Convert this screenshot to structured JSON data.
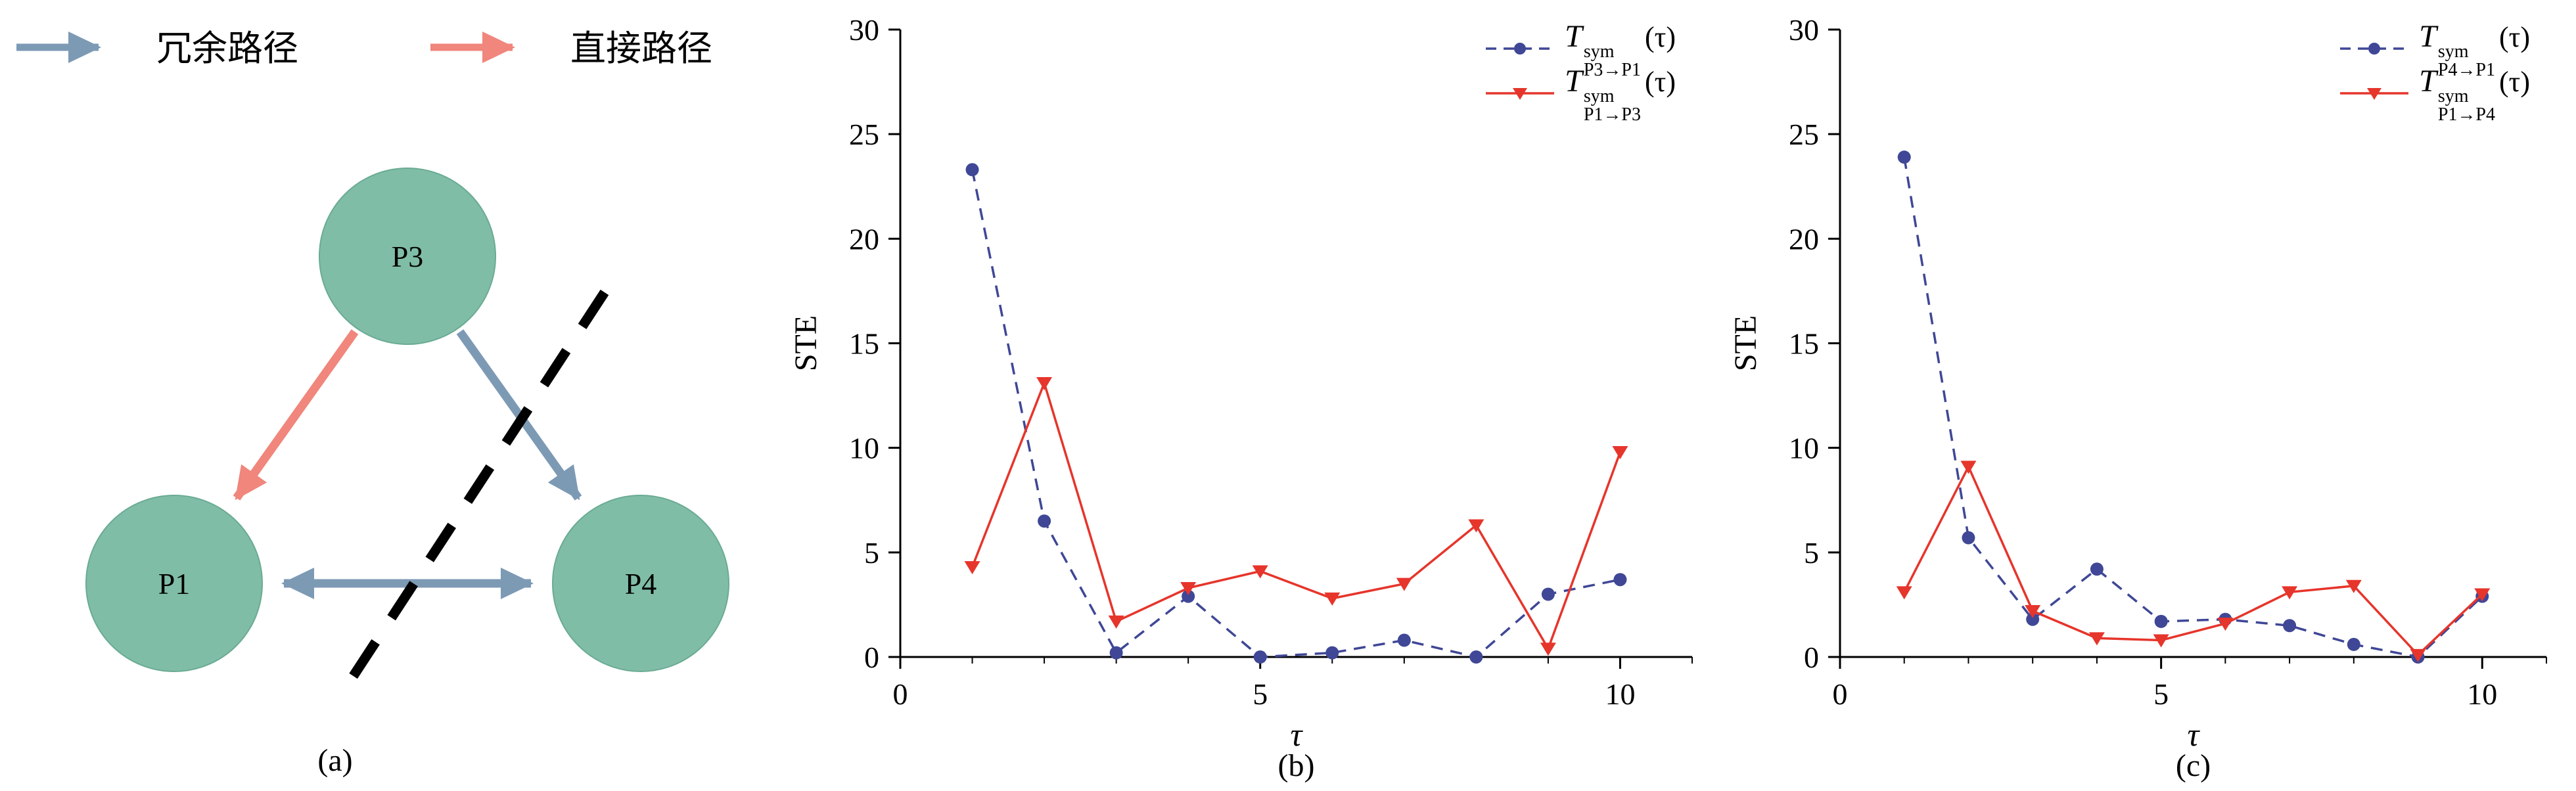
{
  "figure": {
    "background": "#ffffff",
    "panel_labels": {
      "a": "(a)",
      "b": "(b)",
      "c": "(c)"
    }
  },
  "diagram": {
    "legend": [
      {
        "label": "冗余路径",
        "color": "#7d9ab5"
      },
      {
        "label": "直接路径",
        "color": "#f0867c"
      }
    ],
    "nodes": [
      {
        "id": "P3",
        "label": "P3"
      },
      {
        "id": "P1",
        "label": "P1"
      },
      {
        "id": "P4",
        "label": "P4"
      }
    ],
    "colors": {
      "node_fill": "#80bda7",
      "node_stroke": "#6aab93",
      "redundant_path": "#7d9ab5",
      "direct_path": "#f0867c",
      "cut_line": "#000000",
      "label_text": "#1c3440"
    }
  },
  "chart_data": [
    {
      "type": "line",
      "panel": "b",
      "xlabel": "τ",
      "ylabel": "STE",
      "xlim": [
        0,
        11
      ],
      "ylim": [
        0,
        30
      ],
      "xticks": [
        0,
        5,
        10
      ],
      "xticks_minor": [
        1,
        2,
        3,
        4,
        6,
        7,
        8,
        9,
        11
      ],
      "yticks": [
        0,
        5,
        10,
        15,
        20,
        25,
        30
      ],
      "grid": false,
      "legend_position": "top-right",
      "x": [
        1,
        2,
        3,
        4,
        5,
        6,
        7,
        8,
        9,
        10
      ],
      "series": [
        {
          "name": "T_sym_P3_to_P1",
          "color": "#3f4796",
          "marker": "circle",
          "dash": true,
          "legend": {
            "base": "T",
            "sup": "sym",
            "sub": "P3→P1",
            "arg": "(τ)"
          },
          "values": [
            23.3,
            6.5,
            0.2,
            2.9,
            0.0,
            0.2,
            0.8,
            0.0,
            3.0,
            3.7
          ]
        },
        {
          "name": "T_sym_P1_to_P3",
          "color": "#e6352b",
          "marker": "triangle-down",
          "dash": false,
          "legend": {
            "base": "T",
            "sup": "sym",
            "sub": "P1→P3",
            "arg": "(τ)"
          },
          "values": [
            4.3,
            13.1,
            1.7,
            3.3,
            4.1,
            2.8,
            3.5,
            6.3,
            0.4,
            9.8
          ]
        }
      ]
    },
    {
      "type": "line",
      "panel": "c",
      "xlabel": "τ",
      "ylabel": "STE",
      "xlim": [
        0,
        11
      ],
      "ylim": [
        0,
        30
      ],
      "xticks": [
        0,
        5,
        10
      ],
      "xticks_minor": [
        1,
        2,
        3,
        4,
        6,
        7,
        8,
        9,
        11
      ],
      "yticks": [
        0,
        5,
        10,
        15,
        20,
        25,
        30
      ],
      "grid": false,
      "legend_position": "top-right",
      "x": [
        1,
        2,
        3,
        4,
        5,
        6,
        7,
        8,
        9,
        10
      ],
      "series": [
        {
          "name": "T_sym_P4_to_P1",
          "color": "#3f4796",
          "marker": "circle",
          "dash": true,
          "legend": {
            "base": "T",
            "sup": "sym",
            "sub": "P4→P1",
            "arg": "(τ)"
          },
          "values": [
            23.9,
            5.7,
            1.8,
            4.2,
            1.7,
            1.8,
            1.5,
            0.6,
            0.0,
            2.9
          ]
        },
        {
          "name": "T_sym_P1_to_P4",
          "color": "#e6352b",
          "marker": "triangle-down",
          "dash": false,
          "legend": {
            "base": "T",
            "sup": "sym",
            "sub": "P1→P4",
            "arg": "(τ)"
          },
          "values": [
            3.1,
            9.1,
            2.2,
            0.9,
            0.8,
            1.6,
            3.1,
            3.4,
            0.1,
            3.0
          ]
        }
      ]
    }
  ]
}
